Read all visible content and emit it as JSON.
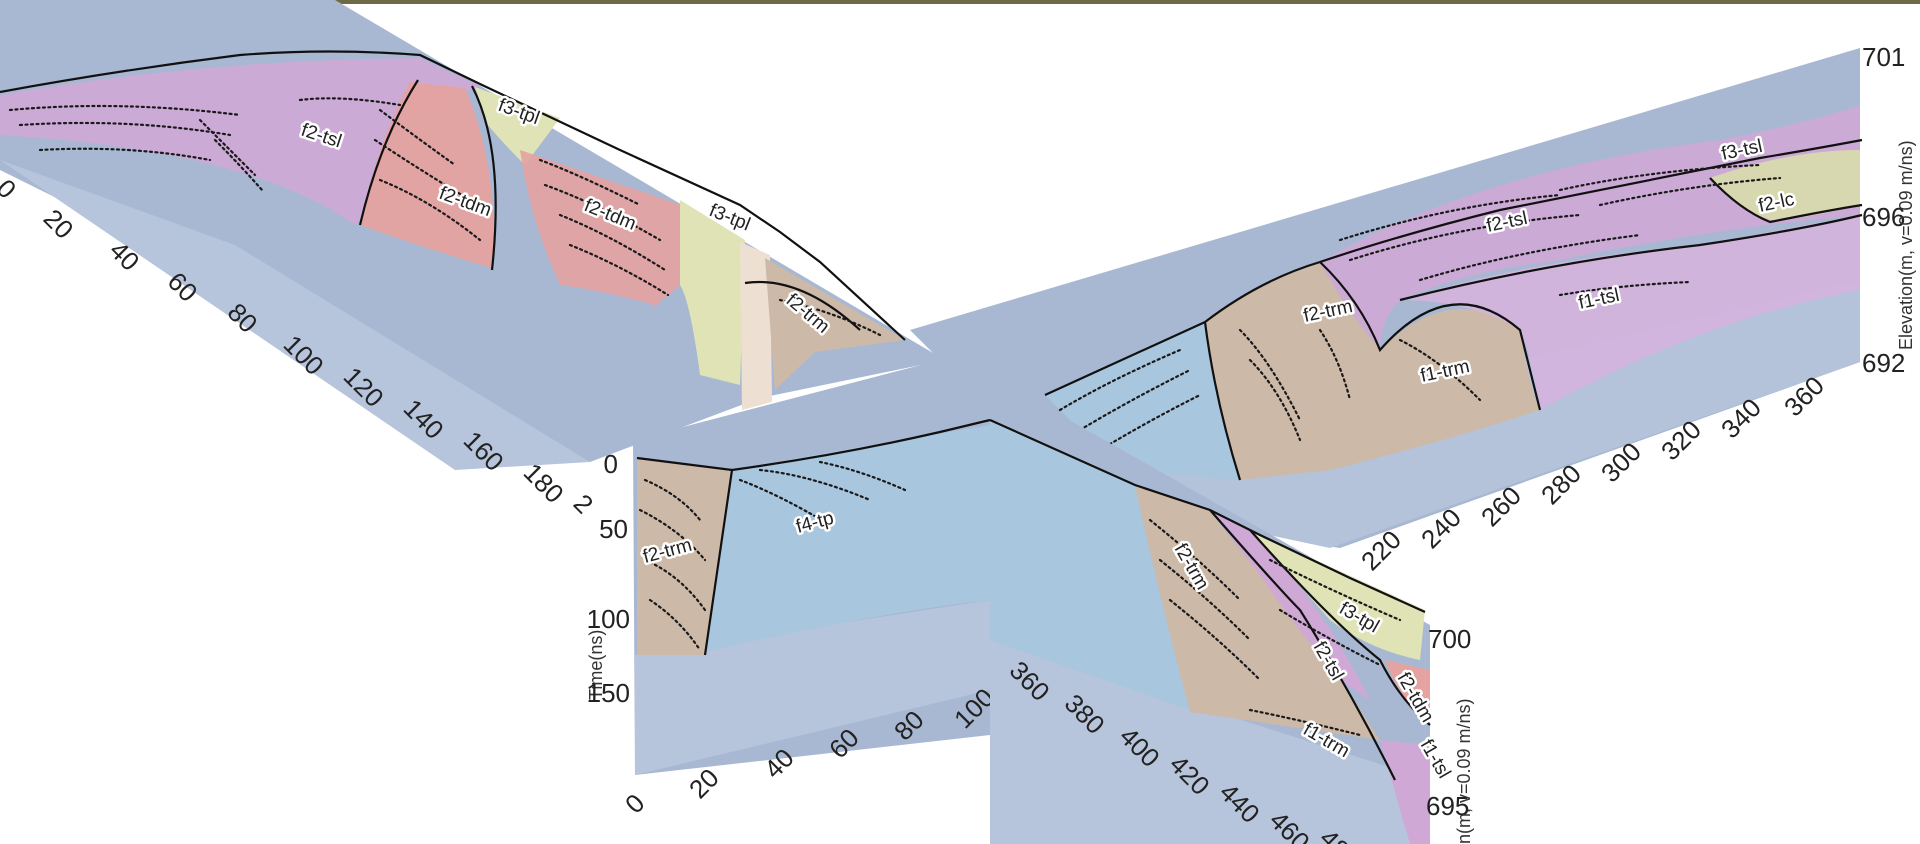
{
  "panels": {
    "top_left": {
      "x_ticks": [
        "0",
        "20",
        "40",
        "60",
        "80",
        "100",
        "120",
        "140",
        "160",
        "180",
        "2"
      ],
      "units": [
        "f2-tsl",
        "f2-tdm",
        "f3-tpl",
        "f2-tdm",
        "f3-tpl",
        "f2-trm"
      ]
    },
    "right": {
      "x_ticks": [
        "220",
        "240",
        "260",
        "280",
        "300",
        "320",
        "340",
        "360"
      ],
      "elevation_ticks": [
        "701",
        "696",
        "692"
      ],
      "elevation_label": "Elevation(m, v=0.09 m/ns)",
      "units": [
        "f3-tsl",
        "f2-lc",
        "f2-tsl",
        "f2-trm",
        "f1-tsl",
        "f1-trm"
      ]
    },
    "center_left": {
      "time_label": "Time(ns)",
      "time_ticks": [
        "0",
        "50",
        "100",
        "150"
      ],
      "x_ticks": [
        "0",
        "20",
        "40",
        "60",
        "80",
        "100"
      ],
      "units": [
        "f2-trm",
        "f4-tp"
      ]
    },
    "center_right": {
      "x_ticks": [
        "360",
        "380",
        "400",
        "420",
        "440",
        "460",
        "48"
      ],
      "elevation_ticks": [
        "700",
        "695"
      ],
      "elevation_label": "n(m, v=0.09 m/ns)",
      "units": [
        "f2-trm",
        "f3-tpl",
        "f2-tsl",
        "f2-tdm",
        "f1-trm",
        "f1-tsl"
      ]
    }
  },
  "colors": {
    "background": "#ffffff",
    "slab": "#a8b8d2",
    "slab_light": "#b9c7de",
    "gpr_grey": "#c9ced6",
    "tsl": "#cfa8d6",
    "tdm": "#e4a2a0",
    "trm": "#cdb9a8",
    "tpl": "#dfe3b6",
    "lc": "#d8d8b0",
    "tp": "#a9c6df",
    "photo_strip": "#6e6a46"
  }
}
